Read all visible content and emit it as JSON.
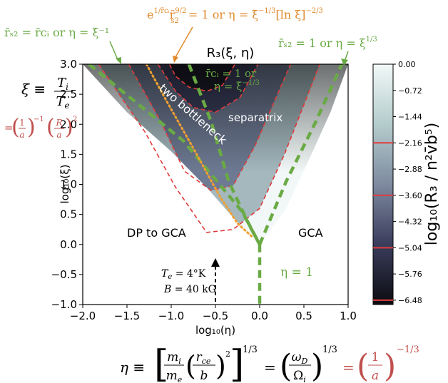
{
  "chart_data": {
    "type": "heatmap",
    "title": "R₃(ξ, η)",
    "xlabel": "log₁₀(η)",
    "ylabel": "log₁₀(ξ)",
    "xlim": [
      -2.0,
      1.0
    ],
    "ylim": [
      -1.0,
      3.0
    ],
    "xticks": [
      "−2.0",
      "−1.5",
      "−1.0",
      "−0.5",
      "0.0",
      "0.5",
      "1.0"
    ],
    "yticks": [
      "−1.0",
      "−0.5",
      "0.0",
      "0.5",
      "1.0",
      "1.5",
      "2.0",
      "2.5",
      "3.0"
    ],
    "xtick_values": [
      -2.0,
      -1.5,
      -1.0,
      -0.5,
      0.0,
      0.5,
      1.0
    ],
    "ytick_values": [
      -1.0,
      -0.5,
      0.0,
      0.5,
      1.0,
      1.5,
      2.0,
      2.5,
      3.0
    ],
    "colorbar": {
      "label": "log₁₀(R₃ / n²v̄b⁵)",
      "ticks": [
        "0.00",
        "−0.72",
        "−1.44",
        "−2.16",
        "−2.88",
        "−3.60",
        "−4.32",
        "−5.04",
        "−5.76",
        "−6.48"
      ],
      "tick_values": [
        0.0,
        -0.72,
        -1.44,
        -2.16,
        -2.88,
        -3.6,
        -4.32,
        -5.04,
        -5.76,
        -6.48
      ],
      "range": [
        -6.6,
        0.0
      ],
      "contour_marks": [
        -2.16,
        -3.6,
        -5.04,
        -6.48
      ],
      "colors": [
        "#0b0b10",
        "#3a3d5c",
        "#7e8aa0",
        "#b4cccc",
        "#f2f8f8"
      ]
    },
    "boundaries": {
      "left": [
        [
          -2.0,
          3.0
        ],
        [
          -1.5,
          2.2
        ],
        [
          -1.0,
          1.55
        ],
        [
          -0.6,
          0.95
        ],
        [
          -0.3,
          0.45
        ],
        [
          0.0,
          0.0
        ]
      ],
      "right": [
        [
          0.0,
          0.0
        ],
        [
          0.3,
          0.6
        ],
        [
          0.6,
          1.55
        ],
        [
          0.8,
          2.2
        ],
        [
          1.0,
          3.0
        ]
      ]
    },
    "contours": [
      {
        "level": -6.48,
        "points": [
          [
            -1.02,
            3.0
          ],
          [
            -0.95,
            2.8
          ],
          [
            -0.8,
            2.62
          ],
          [
            -0.6,
            2.55
          ],
          [
            -0.42,
            2.65
          ],
          [
            -0.28,
            3.0
          ]
        ]
      },
      {
        "level": -5.04,
        "points": [
          [
            -1.15,
            3.0
          ],
          [
            -0.95,
            2.55
          ],
          [
            -0.75,
            2.28
          ],
          [
            -0.5,
            2.2
          ],
          [
            -0.22,
            2.45
          ],
          [
            -0.02,
            3.0
          ]
        ]
      },
      {
        "level": -3.6,
        "points": [
          [
            -1.48,
            3.0
          ],
          [
            -1.12,
            2.05
          ],
          [
            -0.85,
            1.22
          ],
          [
            -0.55,
            0.9
          ],
          [
            -0.3,
            0.98
          ],
          [
            -0.05,
            1.65
          ],
          [
            0.35,
            3.0
          ]
        ]
      },
      {
        "level": -2.16,
        "points": [
          [
            -1.82,
            3.0
          ],
          [
            -1.3,
            1.88
          ],
          [
            -0.95,
            0.95
          ],
          [
            -0.6,
            0.2
          ],
          [
            -0.3,
            0.25
          ],
          [
            0.0,
            0.6
          ],
          [
            0.28,
            1.5
          ],
          [
            0.68,
            3.0
          ]
        ]
      }
    ],
    "dividers": [
      {
        "name": "rs2_eq_rci",
        "style": "green-dashed",
        "points": [
          [
            -1.93,
            3.0
          ],
          [
            -0.86,
            1.72
          ],
          [
            -0.2,
            0.55
          ],
          [
            0.0,
            0.0
          ]
        ]
      },
      {
        "name": "rci_eq_1",
        "style": "green-dashed",
        "points": [
          [
            -0.8,
            3.0
          ],
          [
            -0.55,
            2.05
          ],
          [
            -0.35,
            1.05
          ],
          [
            -0.15,
            0.42
          ],
          [
            0.0,
            0.0
          ]
        ]
      },
      {
        "name": "rs2_eq_1",
        "style": "green-dashed",
        "points": [
          [
            0.0,
            0.0
          ],
          [
            0.3,
            1.05
          ],
          [
            0.62,
            2.0
          ],
          [
            0.93,
            3.0
          ]
        ]
      },
      {
        "name": "eta_eq_1",
        "style": "green-dashed",
        "points": [
          [
            0.0,
            0.0
          ],
          [
            0.0,
            -1.0
          ]
        ]
      },
      {
        "name": "two_bottleneck_line",
        "style": "orange-dotted",
        "points": [
          [
            -1.28,
            3.0
          ],
          [
            -1.05,
            2.38
          ],
          [
            -0.75,
            1.6
          ],
          [
            -0.45,
            0.8
          ],
          [
            -0.25,
            0.35
          ],
          [
            -0.08,
            0.12
          ]
        ]
      }
    ],
    "region_labels": {
      "two_bottleneck": "two bottleneck",
      "separatrix": "separatrix",
      "dp_to_gca": "DP to GCA",
      "gca": "GCA"
    },
    "annotations": {
      "xi_definition_lhs": "ξ ≡",
      "xi_frac_num": "T",
      "xi_frac_num_sub": "i",
      "xi_frac_den": "T",
      "xi_frac_den_sub": "e",
      "xi_red_eq": "=",
      "xi_red_a_num": "1",
      "xi_red_a_den": "a",
      "xi_red_exp1": "−1",
      "xi_red_R_num": "R",
      "xi_red_R_den": "a",
      "xi_red_exp2": "2",
      "top_left_green": "r̄ₛ₂ = r̄ᴄᵢ or η = ξ⁻¹",
      "top_center_orange_1": "e",
      "top_center_orange_exp": "1/r̄ᴄᵢ",
      "top_center_orange_2": "r̄",
      "top_center_orange_sub_exp": "9/2",
      "top_center_orange_sub": "s2",
      "top_center_orange_3": " = 1 or η = ξ",
      "top_center_orange_exp2": "−1/3",
      "top_center_orange_4": "[ln ξ]",
      "top_center_orange_exp3": "−2/3",
      "top_right_green": "r̄ₛ₂ = 1 or η = ξ",
      "top_right_green_exp": "1/3",
      "inner_green_1": "r̄ᴄᵢ = 1 or",
      "inner_green_2": "η = ξ",
      "inner_green_2_exp": "−1/3",
      "eta_one": "η = 1",
      "te_label": "T",
      "te_sub": "e",
      "te_value": " = 4°K",
      "b_label": "B",
      "b_value": " = 40 kG",
      "eta_def_lhs": "η ≡",
      "eta_m_num": "m",
      "eta_m_num_sub": "i",
      "eta_m_den": "m",
      "eta_m_den_sub": "e",
      "eta_r_num": "r",
      "eta_r_num_sub": "ce",
      "eta_r_den": "b",
      "eta_sq": "2",
      "eta_exp": "1/3",
      "eta_eq": "=",
      "eta_w_num": "ω",
      "eta_w_num_sub": "D",
      "eta_w_den": "Ω",
      "eta_w_den_sub": "i",
      "eta_exp2": "1/3",
      "eta_red_eq": "=",
      "eta_red_num": "1",
      "eta_red_den": "a",
      "eta_red_exp": "−1/3"
    }
  }
}
